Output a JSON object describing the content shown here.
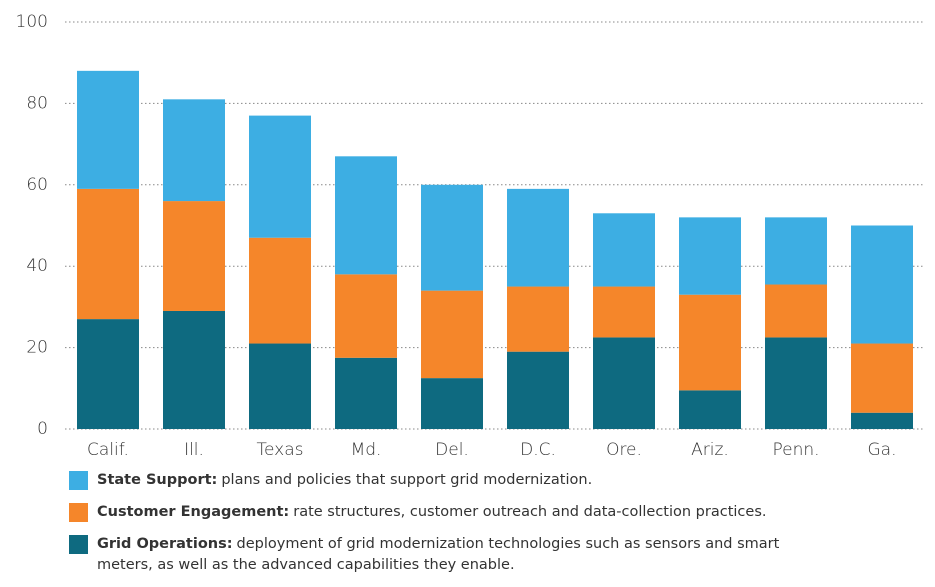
{
  "chart_data": {
    "type": "stacked_bar",
    "categories": [
      "Calif.",
      "Ill.",
      "Texas",
      "Md.",
      "Del.",
      "D.C.",
      "Ore.",
      "Ariz.",
      "Penn.",
      "Ga."
    ],
    "series": [
      {
        "name": "State Support:",
        "description": "plans and policies that support grid modernization.",
        "color": "#3daee3",
        "values": [
          29,
          25,
          30,
          29,
          26,
          24,
          18,
          19,
          16.5,
          29
        ]
      },
      {
        "name": "Customer Engagement:",
        "description": "rate structures, customer outreach and data-collection practices.",
        "color": "#f5862a",
        "values": [
          32,
          27,
          26,
          20.5,
          21.5,
          16,
          12.5,
          23.5,
          13,
          17
        ]
      },
      {
        "name": "Grid Operations:",
        "description": "deployment of grid modernization technologies such as sensors and smart meters, as well as the advanced capabilities they enable.",
        "color": "#0e6a80",
        "values": [
          27,
          29,
          21,
          17.5,
          12.5,
          19,
          22.5,
          9.5,
          22.5,
          4
        ]
      }
    ],
    "ylim": [
      0,
      100
    ],
    "yticks": [
      0,
      20,
      40,
      60,
      80,
      100
    ],
    "grid": true
  }
}
